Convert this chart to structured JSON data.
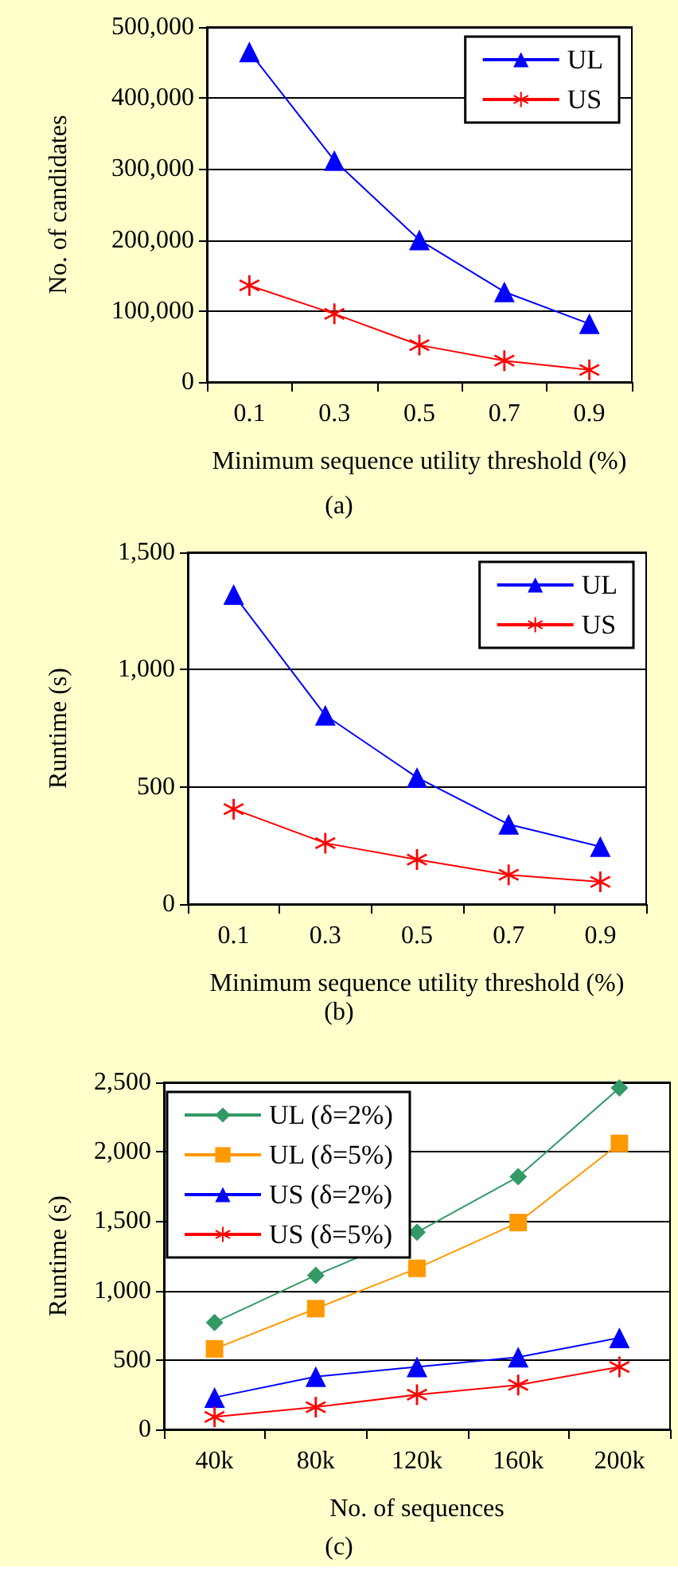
{
  "chart_data": [
    {
      "type": "line",
      "xlabel": "Minimum sequence utility threshold (%)",
      "ylabel": "No. of candidates",
      "annotations": [
        "(a)"
      ],
      "categories": [
        "0.1",
        "0.3",
        "0.5",
        "0.7",
        "0.9"
      ],
      "series": [
        {
          "name": "UL",
          "color": "#0000ff",
          "marker": "triangle",
          "values": [
            465000,
            312000,
            200000,
            127000,
            82000
          ]
        },
        {
          "name": "US",
          "color": "#ff0000",
          "marker": "cross",
          "values": [
            136000,
            96000,
            52000,
            30000,
            17000
          ]
        }
      ],
      "ylim": [
        0,
        500000
      ],
      "yticks": [
        {
          "value": 0,
          "label": "0"
        },
        {
          "value": 100000,
          "label": "100,000"
        },
        {
          "value": 200000,
          "label": "200,000"
        },
        {
          "value": 300000,
          "label": "300,000"
        },
        {
          "value": 400000,
          "label": "400,000"
        },
        {
          "value": 500000,
          "label": "500,000"
        }
      ],
      "grid": "y",
      "legend": "top right"
    },
    {
      "type": "line",
      "xlabel": "Minimum sequence utility threshold (%)",
      "ylabel": "Runtime (s)",
      "annotations": [
        "(b)"
      ],
      "categories": [
        "0.1",
        "0.3",
        "0.5",
        "0.7",
        "0.9"
      ],
      "series": [
        {
          "name": "UL",
          "color": "#0000ff",
          "marker": "triangle",
          "values": [
            1320,
            805,
            540,
            340,
            245
          ]
        },
        {
          "name": "US",
          "color": "#ff0000",
          "marker": "cross",
          "values": [
            405,
            260,
            190,
            125,
            95
          ]
        }
      ],
      "ylim": [
        0,
        1500
      ],
      "yticks": [
        0,
        {
          "value": 500,
          "label": "500"
        },
        {
          "value": 1000,
          "label": "1,000"
        },
        {
          "value": 1500,
          "label": "1,500"
        }
      ],
      "grid": "y",
      "legend": "top right"
    },
    {
      "type": "line",
      "xlabel": "No. of sequences",
      "ylabel": "Runtime (s)",
      "annotations": [
        "(c)"
      ],
      "categories": [
        "40k",
        "80k",
        "120k",
        "160k",
        "200k"
      ],
      "series": [
        {
          "name": "UL (δ=2%)",
          "color": "#339966",
          "marker": "diamond",
          "values": [
            770,
            1110,
            1420,
            1820,
            2460
          ]
        },
        {
          "name": "UL (δ=5%)",
          "color": "#ff9900",
          "marker": "square",
          "values": [
            580,
            870,
            1160,
            1490,
            2060
          ]
        },
        {
          "name": "US (δ=2%)",
          "color": "#0000ff",
          "marker": "triangle",
          "values": [
            230,
            380,
            450,
            520,
            660
          ]
        },
        {
          "name": "US (δ=5%)",
          "color": "#ff0000",
          "marker": "cross",
          "values": [
            90,
            160,
            250,
            320,
            450
          ]
        }
      ],
      "ylim": [
        0,
        2500
      ],
      "yticks": [
        0,
        {
          "value": 500,
          "label": "500"
        },
        {
          "value": 1000,
          "label": "1,000"
        },
        {
          "value": 1500,
          "label": "1,500"
        },
        {
          "value": 2000,
          "label": "2,000"
        },
        {
          "value": 2500,
          "label": "2,500"
        }
      ],
      "grid": "y",
      "legend": "top left"
    }
  ]
}
